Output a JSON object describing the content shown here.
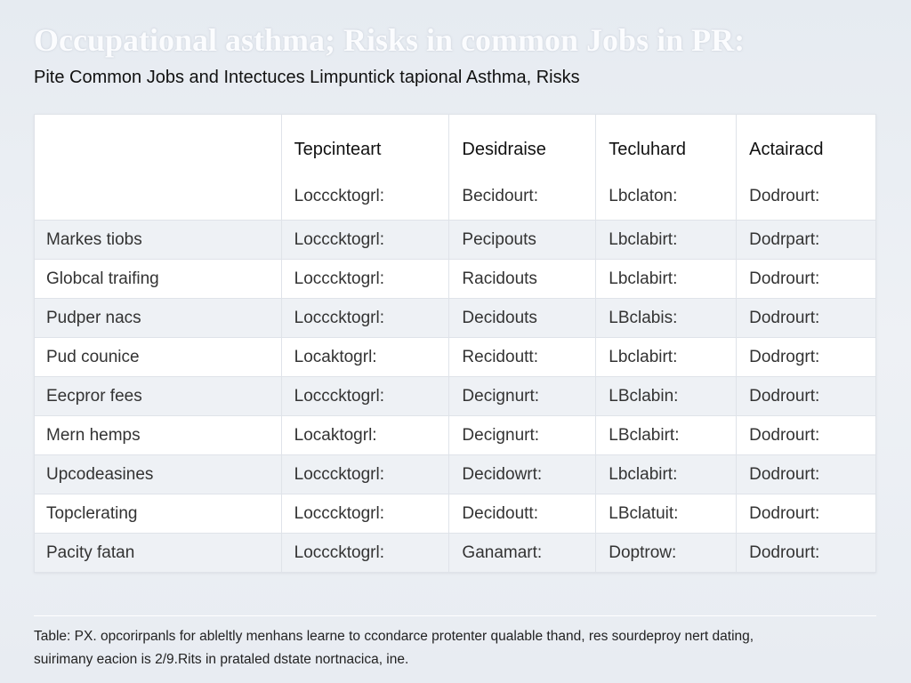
{
  "header": {
    "title": "Occupational asthma; Risks in common Jobs in PR:",
    "subtitle": "Pite Common Jobs and Intectuces Limpuntick tapional Asthma, Risks"
  },
  "table": {
    "columns": [
      "Tepcinteart",
      "Desidraise",
      "Tecluhard",
      "Actairacd"
    ],
    "column_notes": [
      "Locccktogrl:",
      "Becidourt:",
      "Lbclaton:",
      "Dodrourt:"
    ],
    "rows": [
      [
        "Markes tiobs",
        "Locccktogrl:",
        "Pecipouts",
        "Lbclabirt:",
        "Dodrpart:"
      ],
      [
        "Globcal traifing",
        "Locccktogrl:",
        "Racidouts",
        "Lbclabirt:",
        "Dodrourt:"
      ],
      [
        "Pudper nacs",
        "Locccktogrl:",
        "Decidouts",
        "LBclabis:",
        "Dodrourt:"
      ],
      [
        "Pud counice",
        "Locaktogrl:",
        "Recidoutt:",
        "Lbclabirt:",
        "Dodrogrt:"
      ],
      [
        "Eecpror fees",
        "Locccktogrl:",
        "Decignurt:",
        "LBclabin:",
        "Dodrourt:"
      ],
      [
        "Mern hemps",
        "Locaktogrl:",
        "Decignurt:",
        "LBclabirt:",
        "Dodrourt:"
      ],
      [
        "Upcodeasines",
        "Locccktogrl:",
        "Decidowrt:",
        "Lbclabirt:",
        "Dodrourt:"
      ],
      [
        "Topclerating",
        "Locccktogrl:",
        "Decidoutt:",
        "LBclatuit:",
        "Dodrourt:"
      ],
      [
        "Pacity fatan",
        "Locccktogrl:",
        "Ganamart:",
        "Doptrow:",
        "Dodrourt:"
      ]
    ]
  },
  "footer": {
    "lines": [
      "Table: PX. opcorirpanls for ableltly menhans learne to ccondarce protenter qualable thand, res sourdeproy nert dating,",
      "suirimany eacion is 2/9.Rits in prataled dstate nortnacica, ine."
    ]
  }
}
